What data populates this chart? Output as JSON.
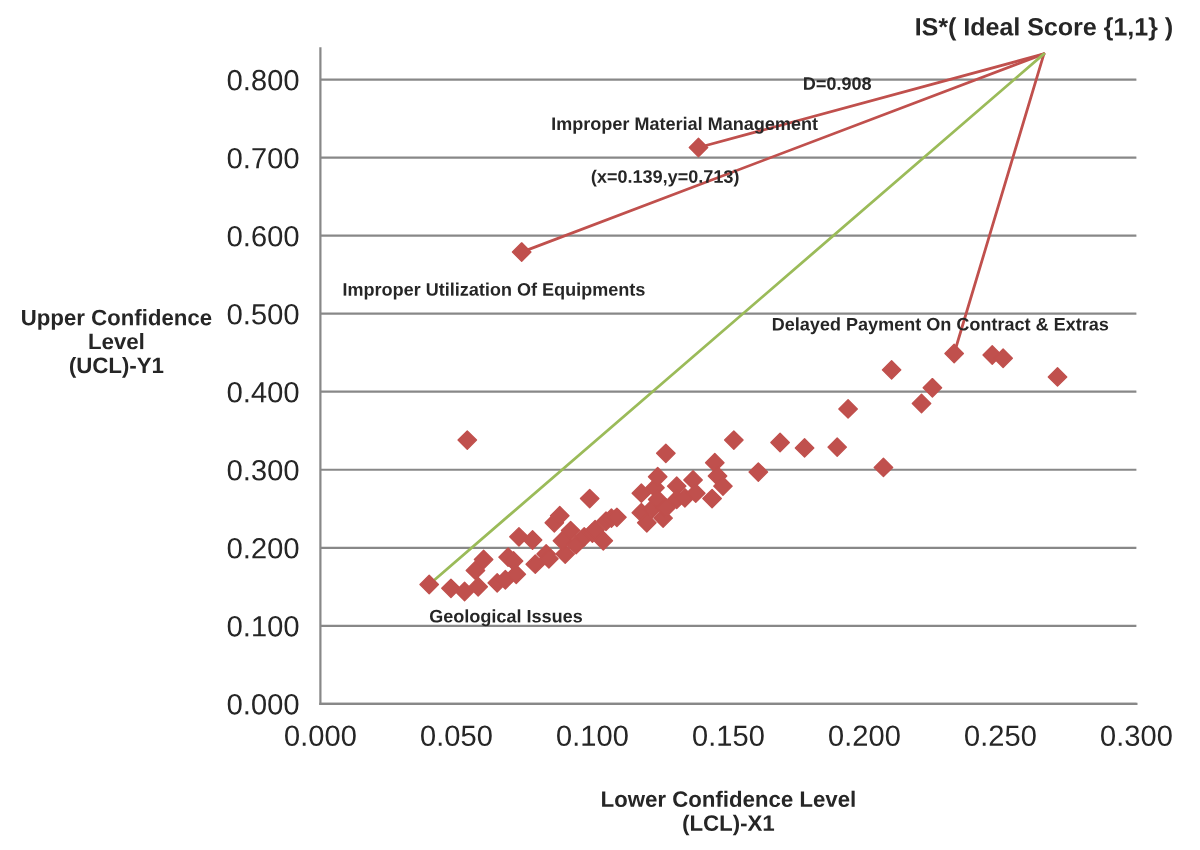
{
  "chart_data": {
    "type": "scatter",
    "xlabel": "Lower Confidence Level\n(LCL)-X1",
    "ylabel": "Upper Confidence\nLevel\n(UCL)-Y1",
    "xlim": [
      0,
      0.3
    ],
    "ylim": [
      0,
      0.84
    ],
    "xticks": [
      {
        "value": 0,
        "label": "0.000"
      },
      {
        "value": 0.05,
        "label": "0.050"
      },
      {
        "value": 0.1,
        "label": "0.100"
      },
      {
        "value": 0.15,
        "label": "0.150"
      },
      {
        "value": 0.2,
        "label": "0.200"
      },
      {
        "value": 0.25,
        "label": "0.250"
      },
      {
        "value": 0.3,
        "label": "0.300"
      }
    ],
    "yticks": [
      {
        "value": 0,
        "label": "0.000"
      },
      {
        "value": 0.1,
        "label": "0.100"
      },
      {
        "value": 0.2,
        "label": "0.200"
      },
      {
        "value": 0.3,
        "label": "0.300"
      },
      {
        "value": 0.4,
        "label": "0.400"
      },
      {
        "value": 0.5,
        "label": "0.500"
      },
      {
        "value": 0.6,
        "label": "0.600"
      },
      {
        "value": 0.7,
        "label": "0.700"
      },
      {
        "value": 0.8,
        "label": "0.800"
      }
    ],
    "grid": "y",
    "legend": false,
    "marker": "diamond",
    "series": [
      {
        "type": "line",
        "marker": "none",
        "color": "#c0504d",
        "x": [
          0.139,
          0.266
        ],
        "values": [
          0.713,
          0.833
        ]
      },
      {
        "type": "line",
        "marker": "none",
        "color": "#c0504d",
        "x": [
          0.074,
          0.266
        ],
        "values": [
          0.579,
          0.833
        ]
      },
      {
        "type": "line",
        "marker": "none",
        "color": "#c0504d",
        "x": [
          0.233,
          0.266
        ],
        "values": [
          0.449,
          0.833
        ]
      },
      {
        "type": "line",
        "marker": "none",
        "color": "#9bbb59",
        "x": [
          0.04,
          0.266
        ],
        "values": [
          0.153,
          0.833
        ]
      },
      {
        "color": "#c0504d",
        "x": [
          0.04,
          0.048,
          0.053,
          0.054,
          0.058,
          0.057,
          0.06,
          0.065,
          0.068,
          0.069,
          0.071,
          0.072,
          0.073,
          0.078,
          0.079,
          0.083,
          0.084,
          0.086,
          0.088,
          0.09,
          0.089,
          0.092,
          0.094,
          0.097,
          0.099,
          0.1,
          0.101,
          0.104,
          0.105,
          0.107,
          0.109,
          0.118,
          0.118,
          0.12,
          0.122,
          0.123,
          0.124,
          0.124,
          0.126,
          0.127,
          0.127,
          0.131,
          0.131,
          0.134,
          0.137,
          0.138,
          0.144,
          0.145,
          0.146,
          0.148,
          0.152,
          0.161,
          0.169,
          0.178,
          0.19,
          0.194,
          0.207,
          0.21,
          0.221,
          0.225,
          0.233,
          0.247,
          0.251,
          0.271,
          0.074,
          0.139
        ],
        "values": [
          0.153,
          0.148,
          0.144,
          0.338,
          0.15,
          0.171,
          0.185,
          0.155,
          0.159,
          0.188,
          0.183,
          0.166,
          0.214,
          0.21,
          0.179,
          0.192,
          0.186,
          0.232,
          0.241,
          0.192,
          0.209,
          0.222,
          0.204,
          0.214,
          0.263,
          0.219,
          0.223,
          0.209,
          0.234,
          0.238,
          0.239,
          0.27,
          0.245,
          0.232,
          0.25,
          0.277,
          0.291,
          0.262,
          0.238,
          0.321,
          0.251,
          0.279,
          0.262,
          0.264,
          0.287,
          0.27,
          0.263,
          0.309,
          0.292,
          0.279,
          0.338,
          0.297,
          0.335,
          0.328,
          0.329,
          0.378,
          0.303,
          0.428,
          0.385,
          0.405,
          0.449,
          0.447,
          0.443,
          0.419,
          0.579,
          0.713
        ]
      }
    ],
    "annotations": [
      {
        "text": "IS*( Ideal Score {1,1} )",
        "x": 0.266,
        "y": 0.833
      },
      {
        "text": "D=0.908",
        "x": 0.19,
        "y": 0.761
      },
      {
        "text": "Improper Material Management",
        "x": 0.139,
        "y": 0.713
      },
      {
        "text": "(x=0.139,y=0.713)",
        "x": 0.139,
        "y": 0.713
      },
      {
        "text": "Improper Utilization Of Equipments",
        "x": 0.074,
        "y": 0.579
      },
      {
        "text": "Delayed Payment On Contract & Extras",
        "x": 0.233,
        "y": 0.449
      },
      {
        "text": "Geological Issues",
        "x": 0.04,
        "y": 0.153
      }
    ]
  }
}
